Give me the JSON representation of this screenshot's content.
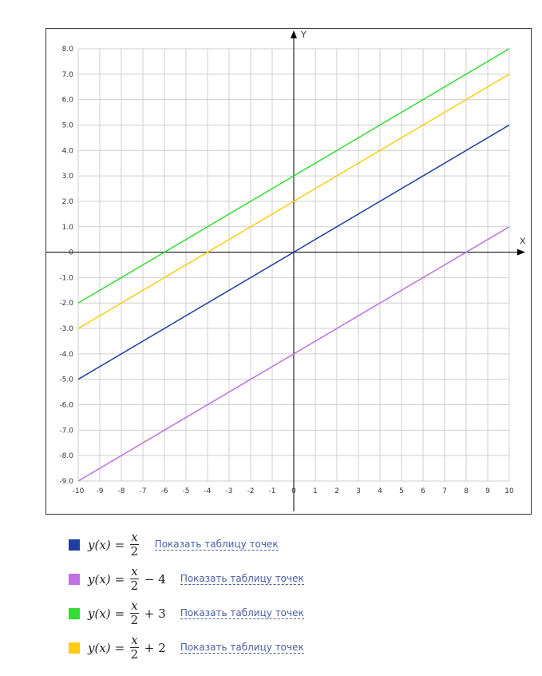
{
  "chart_data": {
    "type": "line",
    "xlabel": "X",
    "ylabel": "Y",
    "xlim": [
      -10,
      10
    ],
    "ylim": [
      -9,
      8
    ],
    "grid": true,
    "x_ticks": [
      "-10",
      "-9",
      "-8",
      "-7",
      "-6",
      "-5",
      "-4",
      "-3",
      "-2",
      "-1",
      "0",
      "1",
      "2",
      "3",
      "4",
      "5",
      "6",
      "7",
      "8",
      "9",
      "10"
    ],
    "y_ticks": [
      "8.0",
      "7.0",
      "6.0",
      "5.0",
      "4.0",
      "3.0",
      "2.0",
      "1.0",
      "0",
      "-1.0",
      "-2.0",
      "-3.0",
      "-4.0",
      "-5.0",
      "-6.0",
      "-7.0",
      "-8.0",
      "-9.0"
    ],
    "series": [
      {
        "name": "y(x) = x/2",
        "color": "#1f3fa0",
        "x": [
          -10,
          10
        ],
        "y": [
          -5,
          5
        ]
      },
      {
        "name": "y(x) = x/2 − 4",
        "color": "#c070e0",
        "x": [
          -10,
          10
        ],
        "y": [
          -9,
          1
        ]
      },
      {
        "name": "y(x) = x/2 + 3",
        "color": "#33dd33",
        "x": [
          -10,
          10
        ],
        "y": [
          -2,
          8
        ]
      },
      {
        "name": "y(x) = x/2 + 2",
        "color": "#ffcc11",
        "x": [
          -10,
          10
        ],
        "y": [
          -3,
          7
        ]
      }
    ]
  },
  "legend": {
    "items": [
      {
        "color": "#1f3fa0",
        "lhs": "y(x)",
        "eq": "=",
        "num": "x",
        "den": "2",
        "op": "",
        "const": "",
        "link": "Показать таблицу точек"
      },
      {
        "color": "#c070e0",
        "lhs": "y(x)",
        "eq": "=",
        "num": "x",
        "den": "2",
        "op": "−",
        "const": "4",
        "link": "Показать таблицу точек"
      },
      {
        "color": "#33dd33",
        "lhs": "y(x)",
        "eq": "=",
        "num": "x",
        "den": "2",
        "op": "+",
        "const": "3",
        "link": "Показать таблицу точек"
      },
      {
        "color": "#ffcc11",
        "lhs": "y(x)",
        "eq": "=",
        "num": "x",
        "den": "2",
        "op": "+",
        "const": "2",
        "link": "Показать таблицу точек"
      }
    ]
  }
}
